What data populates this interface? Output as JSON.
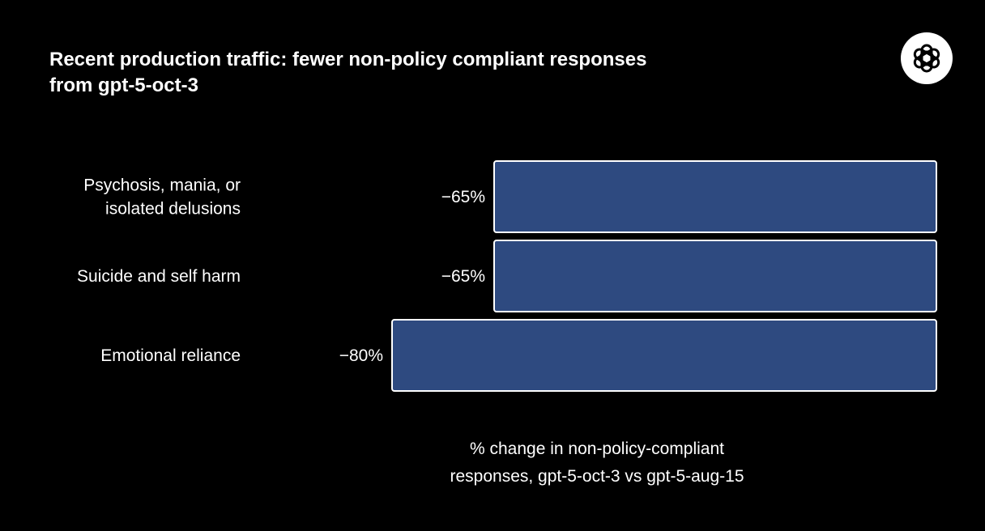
{
  "header": {
    "logo": "openai-logo"
  },
  "chart_data": {
    "type": "bar",
    "orientation": "horizontal",
    "title": "Recent production traffic: fewer non-policy compliant responses from gpt-5-oct-3",
    "categories": [
      [
        "Psychosis, mania, or",
        "isolated delusions"
      ],
      [
        "Suicide and self harm"
      ],
      [
        "Emotional reliance"
      ]
    ],
    "values": [
      -65,
      -65,
      -80
    ],
    "value_labels": [
      "−65%",
      "−65%",
      "−80%"
    ],
    "xlabel": [
      "% change in non-policy-compliant",
      "responses, gpt-5-oct-3 vs gpt-5-aug-15"
    ],
    "xlim": [
      -80,
      0
    ],
    "grid": false,
    "bar_color": "#2e4a80",
    "bar_border_color": "#ffffff"
  }
}
